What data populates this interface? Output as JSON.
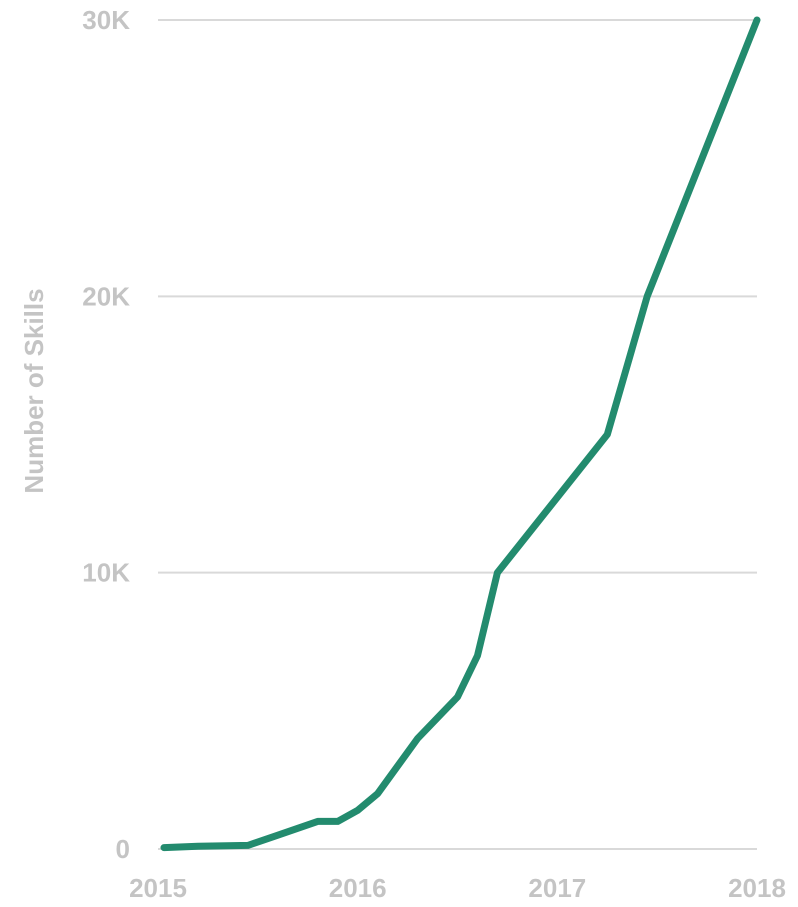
{
  "chart_data": {
    "type": "line",
    "title": "",
    "xlabel": "",
    "ylabel": "Number of Skills",
    "x_ticks": [
      "2015",
      "2016",
      "2017",
      "2018"
    ],
    "y_ticks": [
      {
        "value": 0,
        "label": "0"
      },
      {
        "value": 10000,
        "label": "10K"
      },
      {
        "value": 20000,
        "label": "20K"
      },
      {
        "value": 30000,
        "label": "30K"
      }
    ],
    "xlim": [
      2015.0,
      2018.0
    ],
    "ylim": [
      0,
      30000
    ],
    "grid": true,
    "legend": "none",
    "series": [
      {
        "color": "#238b6e",
        "x": [
          2015.03,
          2015.2,
          2015.45,
          2015.6,
          2015.8,
          2015.9,
          2016.0,
          2016.1,
          2016.3,
          2016.5,
          2016.6,
          2016.7,
          2017.25,
          2017.45,
          2018.0
        ],
        "values": [
          50,
          100,
          130,
          500,
          1000,
          1000,
          1400,
          2000,
          4000,
          5500,
          7000,
          10000,
          15000,
          20000,
          30000
        ]
      }
    ]
  }
}
